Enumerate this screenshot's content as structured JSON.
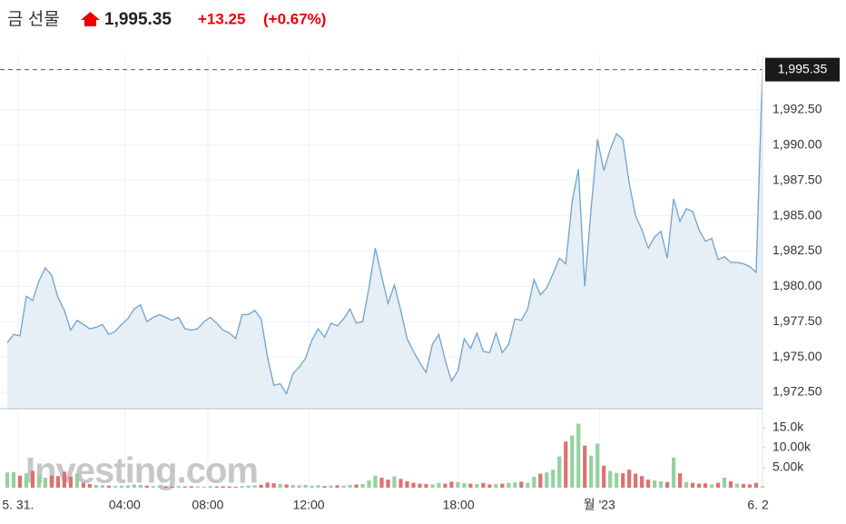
{
  "header": {
    "title": "금 선물",
    "price": "1,995.35",
    "change": "+13.25",
    "change_pct": "(+0.67%)"
  },
  "watermark": "Investing.com",
  "chart_data": [
    {
      "type": "area",
      "color": "#6ea3cf",
      "fill": "#e6eef6",
      "grid": true,
      "values": [
        1976.0,
        1976.6,
        1976.5,
        1979.3,
        1979.0,
        1980.4,
        1981.3,
        1980.8,
        1979.2,
        1978.3,
        1976.9,
        1977.6,
        1977.3,
        1977.0,
        1977.1,
        1977.3,
        1976.6,
        1976.8,
        1977.3,
        1977.7,
        1978.4,
        1978.7,
        1977.5,
        1977.8,
        1978.0,
        1977.8,
        1977.6,
        1977.8,
        1977.0,
        1976.9,
        1977.0,
        1977.5,
        1977.8,
        1977.4,
        1976.9,
        1976.7,
        1976.3,
        1978.0,
        1978.0,
        1978.3,
        1977.7,
        1975.0,
        1973.0,
        1973.1,
        1972.4,
        1973.8,
        1974.3,
        1974.9,
        1976.2,
        1977.0,
        1976.4,
        1977.4,
        1977.2,
        1977.7,
        1978.4,
        1977.4,
        1977.5,
        1979.9,
        1982.7,
        1980.7,
        1978.8,
        1980.1,
        1978.3,
        1976.3,
        1975.4,
        1974.6,
        1973.9,
        1975.9,
        1976.6,
        1974.8,
        1973.3,
        1974.0,
        1976.3,
        1975.6,
        1976.7,
        1975.4,
        1975.3,
        1976.7,
        1975.3,
        1975.9,
        1977.7,
        1977.6,
        1978.4,
        1980.5,
        1979.4,
        1979.9,
        1980.9,
        1982.0,
        1981.6,
        1986.0,
        1988.3,
        1980.0,
        1985.5,
        1990.4,
        1988.2,
        1989.7,
        1990.8,
        1990.4,
        1987.3,
        1985.0,
        1984.0,
        1982.7,
        1983.5,
        1983.9,
        1982.0,
        1986.2,
        1984.6,
        1985.5,
        1985.3,
        1984.0,
        1983.2,
        1983.4,
        1981.9,
        1982.1,
        1981.7,
        1981.7,
        1981.6,
        1981.4,
        1981.0,
        1995.35
      ],
      "ylim": [
        1971.34,
        1996.42
      ],
      "yticks": [
        {
          "value": 1972.5,
          "label": "1,972.50"
        },
        {
          "value": 1975,
          "label": "1,975.00"
        },
        {
          "value": 1977.5,
          "label": "1,977.50"
        },
        {
          "value": 1980,
          "label": "1,980.00"
        },
        {
          "value": 1982.5,
          "label": "1,982.50"
        },
        {
          "value": 1985,
          "label": "1,985.00"
        },
        {
          "value": 1987.5,
          "label": "1,987.50"
        },
        {
          "value": 1990,
          "label": "1,990.00"
        },
        {
          "value": 1992.5,
          "label": "1,992.50"
        }
      ],
      "xticks": [
        {
          "value": 1.7,
          "label": "5. 31."
        },
        {
          "value": 18.5,
          "label": "04:00"
        },
        {
          "value": 31.6,
          "label": "08:00"
        },
        {
          "value": 47.5,
          "label": "12:00"
        },
        {
          "value": 71.1,
          "label": "18:00"
        },
        {
          "value": 93.3,
          "label": "월 '23"
        },
        {
          "value": 118.3,
          "label": "6. 2"
        }
      ]
    },
    {
      "type": "bar",
      "up_color": "#94d1a0",
      "down_color": "#e07070",
      "values": [
        3800,
        3900,
        3000,
        3600,
        4200,
        3100,
        2500,
        3000,
        2900,
        4000,
        2800,
        3500,
        1200,
        900,
        700,
        600,
        500,
        400,
        500,
        600,
        800,
        700,
        500,
        400,
        300,
        350,
        300,
        400,
        300,
        350,
        300,
        250,
        400,
        300,
        350,
        300,
        250,
        400,
        500,
        600,
        700,
        1300,
        1100,
        900,
        800,
        700,
        600,
        700,
        500,
        600,
        400,
        500,
        600,
        500,
        700,
        800,
        900,
        1800,
        3000,
        2500,
        2000,
        2800,
        2200,
        1600,
        1200,
        1000,
        900,
        800,
        1200,
        1000,
        1500,
        1400,
        1100,
        1000,
        900,
        1200,
        800,
        900,
        1000,
        1200,
        1300,
        1500,
        1200,
        2700,
        3500,
        3800,
        4500,
        7800,
        11500,
        13000,
        16000,
        10500,
        8000,
        11000,
        5500,
        4200,
        3700,
        3600,
        4500,
        3500,
        2900,
        2000,
        1800,
        1600,
        1400,
        7500,
        3600,
        1400,
        1200,
        1000,
        1100,
        800,
        1200,
        2500,
        1600,
        1000,
        900,
        800,
        1200,
        400
      ],
      "ylim": [
        0,
        18600
      ],
      "yticks": [
        {
          "value": 5000,
          "label": "5.00k"
        },
        {
          "value": 10000,
          "label": "10.00k"
        },
        {
          "value": 15000,
          "label": "15.0k"
        }
      ]
    }
  ]
}
